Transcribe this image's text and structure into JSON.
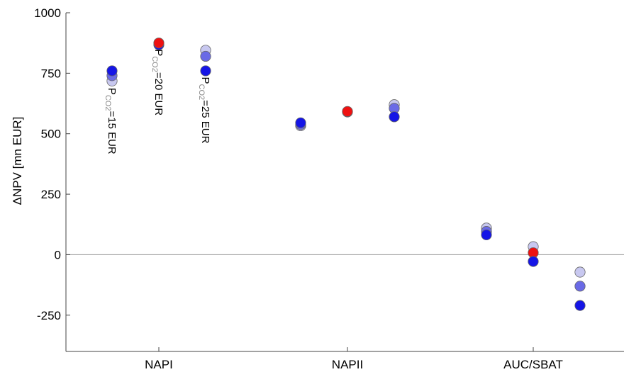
{
  "chart_data": {
    "type": "scatter",
    "title": "",
    "xlabel": "",
    "ylabel": "ΔNPV [mn EUR]",
    "categories": [
      "NAPI",
      "NAPII",
      "AUC/SBAT"
    ],
    "ylim": [
      -400,
      1000
    ],
    "yticks": [
      1000,
      750,
      500,
      250,
      0,
      -250
    ],
    "ytick_labels": [
      "1000",
      "750",
      "500",
      "250",
      "0",
      "-250"
    ],
    "grid": false,
    "zero_line": true,
    "colors": {
      "light": "#c8c8f0",
      "medium": "#6a6ae6",
      "dark": "#1515e6",
      "reference": "#ee1111"
    },
    "groups": [
      {
        "category": "NAPI",
        "positions": [
          {
            "offset": -1,
            "points": [
              {
                "y": 718,
                "shade": "light"
              },
              {
                "y": 740,
                "shade": "medium"
              },
              {
                "y": 760,
                "shade": "dark"
              }
            ]
          },
          {
            "offset": 0,
            "points": [
              {
                "y": 868,
                "shade": "dark"
              },
              {
                "y": 875,
                "shade": "reference"
              }
            ]
          },
          {
            "offset": 1,
            "points": [
              {
                "y": 845,
                "shade": "light"
              },
              {
                "y": 820,
                "shade": "medium"
              },
              {
                "y": 760,
                "shade": "dark"
              }
            ]
          }
        ]
      },
      {
        "category": "NAPII",
        "positions": [
          {
            "offset": -1,
            "points": [
              {
                "y": 533,
                "shade": "light"
              },
              {
                "y": 538,
                "shade": "medium"
              },
              {
                "y": 545,
                "shade": "dark"
              }
            ]
          },
          {
            "offset": 0,
            "points": [
              {
                "y": 590,
                "shade": "dark"
              },
              {
                "y": 592,
                "shade": "reference"
              }
            ]
          },
          {
            "offset": 1,
            "points": [
              {
                "y": 620,
                "shade": "light"
              },
              {
                "y": 605,
                "shade": "medium"
              },
              {
                "y": 570,
                "shade": "dark"
              }
            ]
          }
        ]
      },
      {
        "category": "AUC/SBAT",
        "positions": [
          {
            "offset": -1,
            "points": [
              {
                "y": 110,
                "shade": "light"
              },
              {
                "y": 96,
                "shade": "medium"
              },
              {
                "y": 82,
                "shade": "dark"
              }
            ]
          },
          {
            "offset": 0,
            "points": [
              {
                "y": 33,
                "shade": "light"
              },
              {
                "y": 8,
                "shade": "reference"
              },
              {
                "y": -28,
                "shade": "dark"
              }
            ]
          },
          {
            "offset": 1,
            "points": [
              {
                "y": -72,
                "shade": "light"
              },
              {
                "y": -130,
                "shade": "medium"
              },
              {
                "y": -210,
                "shade": "dark"
              }
            ]
          }
        ]
      }
    ],
    "annotations": [
      {
        "main": "P",
        "sub": "CO2",
        "rest": "=15 EUR",
        "group": "NAPI",
        "offset": -1,
        "y": 690
      },
      {
        "main": "P",
        "sub": "CO2",
        "rest": "=20 EUR",
        "group": "NAPI",
        "offset": 0,
        "y": 850
      },
      {
        "main": "P",
        "sub": "CO2",
        "rest": "=25 EUR",
        "group": "NAPI",
        "offset": 1,
        "y": 735
      }
    ]
  }
}
